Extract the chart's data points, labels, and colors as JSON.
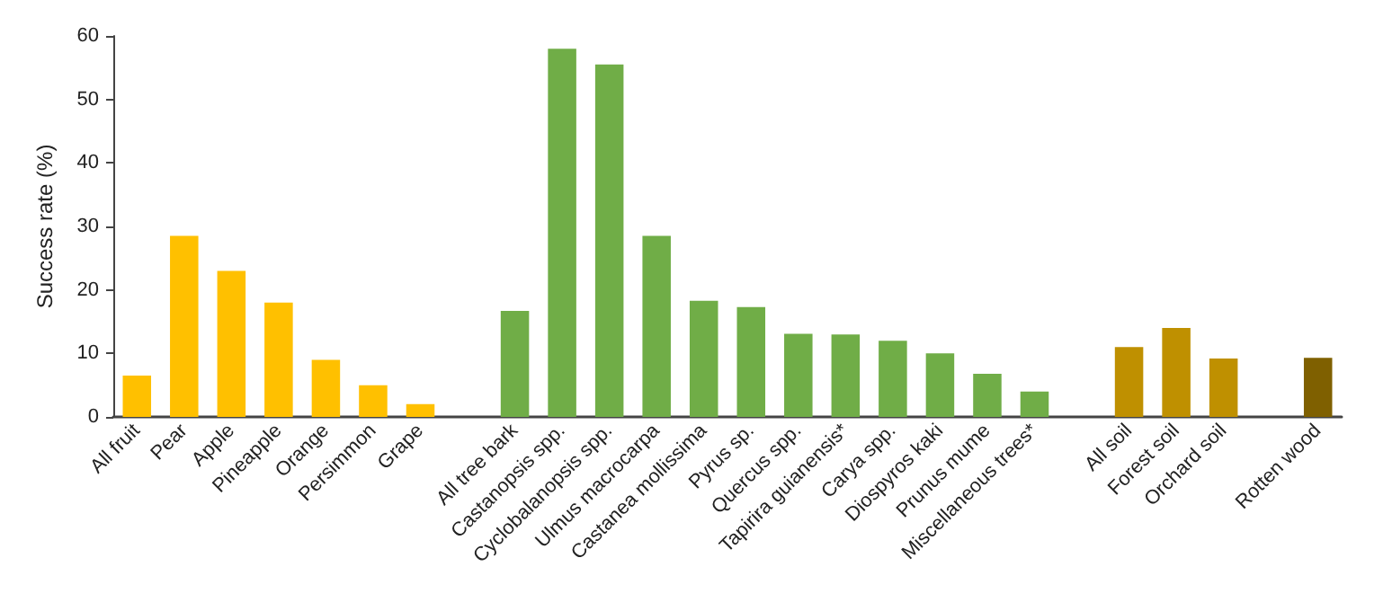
{
  "chart_data": {
    "type": "bar",
    "ylabel": "Success rate (%)",
    "categories": [
      "All fruit",
      "Pear",
      "Apple",
      "Pineapple",
      "Orange",
      "Persimmon",
      "Grape",
      null,
      "All tree bark",
      "Castanopsis spp.",
      "Cyclobalanopsis spp.",
      "Ulmus macrocarpa",
      "Castanea mollissima",
      "Pyrus sp.",
      "Quercus spp.",
      "Tapirira guianensis*",
      "Carya spp.",
      "Diospyros kaki",
      "Prunus mume",
      "Miscellaneous trees*",
      null,
      "All soil",
      "Forest soil",
      "Orchard soil",
      null,
      "Rotten wood"
    ],
    "values": [
      6.5,
      28.5,
      23,
      18,
      9,
      5,
      2,
      null,
      16.7,
      58,
      55.5,
      28.5,
      18.3,
      17.3,
      13.1,
      13,
      12,
      10,
      6.8,
      4,
      null,
      11,
      14,
      9.2,
      null,
      9.3
    ],
    "colors": [
      "#ffc000",
      "#ffc000",
      "#ffc000",
      "#ffc000",
      "#ffc000",
      "#ffc000",
      "#ffc000",
      null,
      "#70ad47",
      "#70ad47",
      "#70ad47",
      "#70ad47",
      "#70ad47",
      "#70ad47",
      "#70ad47",
      "#70ad47",
      "#70ad47",
      "#70ad47",
      "#70ad47",
      "#70ad47",
      null,
      "#bf9000",
      "#bf9000",
      "#bf9000",
      null,
      "#7f6000"
    ],
    "ylim": [
      0,
      60
    ],
    "yticks": [
      0,
      10,
      20,
      30,
      40,
      50,
      60
    ]
  }
}
